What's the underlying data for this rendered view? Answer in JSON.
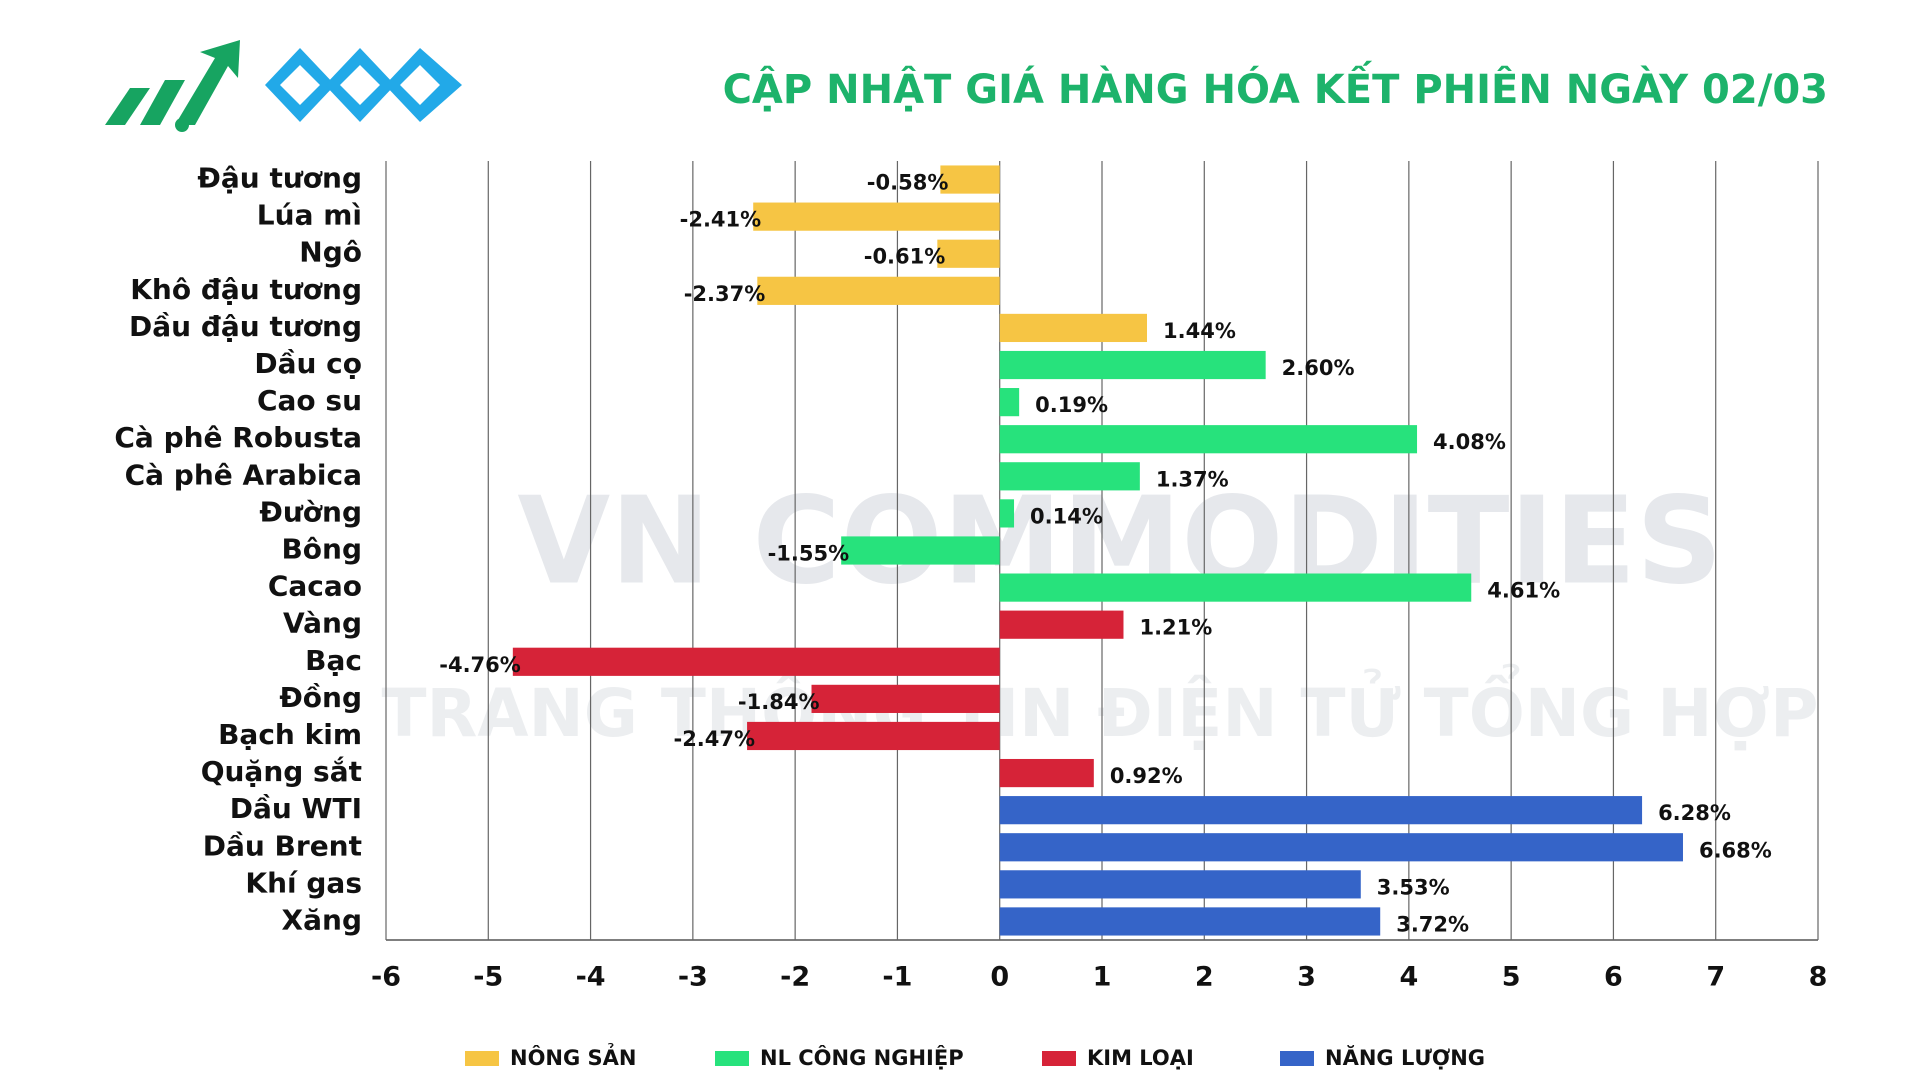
{
  "chart_data": {
    "type": "bar",
    "orientation": "horizontal",
    "title": "CẬP NHẬT GIÁ HÀNG HÓA KẾT PHIÊN NGÀY 02/03",
    "watermark": [
      "VN COMMODITIES",
      "TRANG THÔNG TIN ĐIỆN TỬ TỔNG HỢP"
    ],
    "categories": [
      "Đậu tương",
      "Lúa mì",
      "Ngô",
      "Khô đậu tương",
      "Dầu đậu tương",
      "Dầu cọ",
      "Cao su",
      "Cà phê Robusta",
      "Cà phê Arabica",
      "Đường",
      "Bông",
      "Cacao",
      "Vàng",
      "Bạc",
      "Đồng",
      "Bạch kim",
      "Quặng sắt",
      "Dầu WTI",
      "Dầu Brent",
      "Khí gas",
      "Xăng"
    ],
    "series": [
      {
        "name": "NÔNG SẢN",
        "color": "#f6c544",
        "values": [
          -0.58,
          -2.41,
          -0.61,
          -2.37,
          1.44,
          null,
          null,
          null,
          null,
          null,
          null,
          null,
          null,
          null,
          null,
          null,
          null,
          null,
          null,
          null,
          null
        ],
        "value_labels": [
          "-0.58%",
          "-2.41%",
          "-0.61%",
          "-2.37%",
          "1.44%",
          null,
          null,
          null,
          null,
          null,
          null,
          null,
          null,
          null,
          null,
          null,
          null,
          null,
          null,
          null,
          null
        ]
      },
      {
        "name": "NL CÔNG NGHIỆP",
        "color": "#27e27c",
        "values": [
          null,
          null,
          null,
          null,
          null,
          2.6,
          0.19,
          4.08,
          1.37,
          0.14,
          -1.55,
          4.61,
          null,
          null,
          null,
          null,
          null,
          null,
          null,
          null,
          null
        ],
        "value_labels": [
          null,
          null,
          null,
          null,
          null,
          "2.60%",
          "0.19%",
          "4.08%",
          "1.37%",
          "0.14%",
          "-1.55%",
          "4.61%",
          null,
          null,
          null,
          null,
          null,
          null,
          null,
          null,
          null
        ]
      },
      {
        "name": "KIM LOẠI",
        "color": "#d62338",
        "values": [
          null,
          null,
          null,
          null,
          null,
          null,
          null,
          null,
          null,
          null,
          null,
          null,
          1.21,
          -4.76,
          -1.84,
          -2.47,
          0.92,
          null,
          null,
          null,
          null
        ],
        "value_labels": [
          null,
          null,
          null,
          null,
          null,
          null,
          null,
          null,
          null,
          null,
          null,
          null,
          "1.21%",
          "-4.76%",
          "-1.84%",
          "-2.47%",
          "0.92%",
          null,
          null,
          null,
          null
        ]
      },
      {
        "name": "NĂNG LƯỢNG",
        "color": "#3564c8",
        "values": [
          null,
          null,
          null,
          null,
          null,
          null,
          null,
          null,
          null,
          null,
          null,
          null,
          null,
          null,
          null,
          null,
          null,
          6.28,
          6.68,
          3.53,
          3.72
        ],
        "value_labels": [
          null,
          null,
          null,
          null,
          null,
          null,
          null,
          null,
          null,
          null,
          null,
          null,
          null,
          null,
          null,
          null,
          null,
          "6.28%",
          "6.68%",
          "3.53%",
          "3.72%"
        ]
      }
    ],
    "xlim": [
      -6,
      8
    ],
    "xticks": [
      -6,
      -5,
      -4,
      -3,
      -2,
      -1,
      0,
      1,
      2,
      3,
      4,
      5,
      6,
      7,
      8
    ],
    "grid": true,
    "legend": "bottom"
  }
}
